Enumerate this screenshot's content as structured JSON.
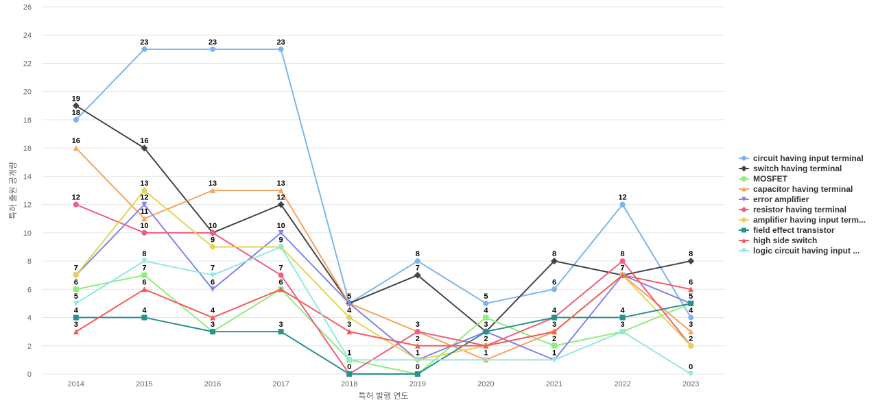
{
  "chart_data": {
    "type": "line",
    "title": "",
    "xlabel": "특허 발행 연도",
    "ylabel": "특허 출원 공개량",
    "categories": [
      "2014",
      "2015",
      "2016",
      "2017",
      "2018",
      "2019",
      "2020",
      "2021",
      "2022",
      "2023"
    ],
    "ylim": [
      0,
      26
    ],
    "yticks": [
      0,
      2,
      4,
      6,
      8,
      10,
      12,
      14,
      16,
      18,
      20,
      22,
      24,
      26
    ],
    "grid": true,
    "legend_position": "right",
    "series": [
      {
        "name": "circuit having input terminal",
        "color": "#7cb5ec",
        "marker": "circle",
        "values": [
          18,
          23,
          23,
          23,
          5,
          8,
          5,
          6,
          12,
          4
        ]
      },
      {
        "name": "switch having terminal",
        "color": "#434348",
        "marker": "diamond",
        "values": [
          19,
          16,
          10,
          12,
          5,
          7,
          3,
          8,
          7,
          8
        ]
      },
      {
        "name": "MOSFET",
        "color": "#90ed7d",
        "marker": "square",
        "values": [
          6,
          7,
          3,
          6,
          1,
          0,
          4,
          2,
          3,
          5
        ]
      },
      {
        "name": "capacitor having terminal",
        "color": "#f7a35c",
        "marker": "triangle",
        "values": [
          16,
          11,
          13,
          13,
          5,
          3,
          1,
          3,
          7,
          3
        ]
      },
      {
        "name": "error amplifier",
        "color": "#8085e9",
        "marker": "triangle-down",
        "values": [
          7,
          12,
          6,
          10,
          5,
          1,
          3,
          1,
          7,
          5
        ]
      },
      {
        "name": "resistor having terminal",
        "color": "#f15c80",
        "marker": "circle",
        "values": [
          12,
          10,
          10,
          7,
          0,
          3,
          2,
          4,
          8,
          2
        ]
      },
      {
        "name": "amplifier having input terminal",
        "legend_label": "amplifier having input term...",
        "color": "#e4d354",
        "marker": "diamond",
        "values": [
          7,
          13,
          9,
          9,
          4,
          1,
          2,
          3,
          7,
          2
        ]
      },
      {
        "name": "field effect transistor",
        "color": "#2b908f",
        "marker": "square",
        "values": [
          4,
          4,
          3,
          3,
          0,
          0,
          3,
          4,
          4,
          5
        ]
      },
      {
        "name": "high side switch",
        "color": "#f45b5b",
        "marker": "triangle",
        "values": [
          3,
          6,
          4,
          6,
          3,
          2,
          2,
          3,
          7,
          6
        ]
      },
      {
        "name": "logic circuit having input",
        "legend_label": "logic circuit having input ...",
        "color": "#91e8e1",
        "marker": "triangle-down",
        "values": [
          5,
          8,
          7,
          9,
          1,
          1,
          1,
          1,
          3,
          0
        ]
      }
    ]
  }
}
